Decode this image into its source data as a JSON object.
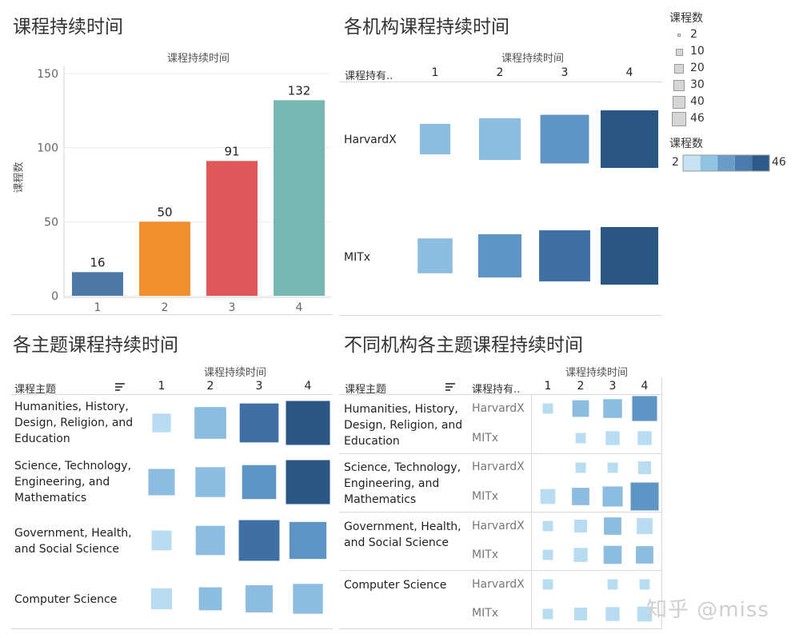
{
  "panels": {
    "p1_title": "课程持续时间",
    "p2_title": "各机构课程持续时间",
    "p3_title": "各主题课程持续时间",
    "p4_title": "不同机构各主题课程持续时间"
  },
  "axis_title_top": "课程持续时间",
  "duration_header_short": "课程持有..",
  "topic_header": "课程主题",
  "legend": {
    "size_title": "课程数",
    "size_values": [
      "2",
      "10",
      "20",
      "30",
      "40",
      "46"
    ],
    "color_title": "课程数",
    "color_min": "2",
    "color_max": "46",
    "color_steps": [
      "#c6e2f3",
      "#93c3e3",
      "#6a9cc8",
      "#4a7aae",
      "#2c5b8a"
    ]
  },
  "watermark": "知乎 @miss",
  "colors": {
    "bar": [
      "#4e79a7",
      "#f28e2b",
      "#e15759",
      "#76b7b2"
    ],
    "blue_scale": [
      "#b8dcf1",
      "#8cbde0",
      "#5f95c4",
      "#3f6fa3",
      "#2a5684"
    ]
  },
  "chart_data": [
    {
      "type": "bar",
      "title": "课程持续时间",
      "xlabel": "课程持续时间",
      "ylabel": "课程数",
      "categories": [
        "1",
        "2",
        "3",
        "4"
      ],
      "values": [
        16,
        50,
        91,
        132
      ],
      "data_labels": [
        "16",
        "50",
        "91",
        "132"
      ],
      "yticks": [
        "150",
        "100",
        "50",
        "0"
      ],
      "ylim": [
        0,
        150
      ]
    },
    {
      "type": "heatmap",
      "title": "各机构课程持续时间",
      "xlabel": "课程持续时间",
      "columns": [
        "1",
        "2",
        "3",
        "4"
      ],
      "rows": [
        "HarvardX",
        "MITx"
      ],
      "values": [
        [
          8,
          20,
          30,
          46
        ],
        [
          12,
          22,
          34,
          46
        ]
      ]
    },
    {
      "type": "heatmap",
      "title": "各主题课程持续时间",
      "xlabel": "课程持续时间",
      "columns": [
        "1",
        "2",
        "3",
        "4"
      ],
      "rows": [
        "Humanities, History, Design, Religion, and Education",
        "Science, Technology, Engineering, and Mathematics",
        "Government, Health, and Social Science",
        "Computer Science"
      ],
      "values": [
        [
          4,
          20,
          34,
          46
        ],
        [
          12,
          17,
          24,
          46
        ],
        [
          5,
          16,
          38,
          30
        ],
        [
          6,
          8,
          13,
          17
        ]
      ]
    },
    {
      "type": "heatmap",
      "title": "不同机构各主题课程持续时间",
      "xlabel": "课程持续时间",
      "columns": [
        "1",
        "2",
        "3",
        "4"
      ],
      "topics": [
        "Humanities, History, Design, Religion, and Education",
        "Science, Technology, Engineering, and Mathematics",
        "Government, Health, and Social Science",
        "Computer Science"
      ],
      "orgs": [
        "HarvardX",
        "MITx"
      ],
      "values": [
        [
          [
            2,
            8,
            11,
            22
          ],
          [
            null,
            2,
            5,
            5
          ]
        ],
        [
          [
            null,
            2,
            2,
            4
          ],
          [
            6,
            9,
            13,
            29
          ]
        ],
        [
          [
            2,
            4,
            9,
            7
          ],
          [
            2,
            5,
            10,
            9
          ]
        ],
        [
          [
            2,
            null,
            2,
            2
          ],
          [
            2,
            4,
            5,
            6
          ]
        ]
      ]
    }
  ]
}
